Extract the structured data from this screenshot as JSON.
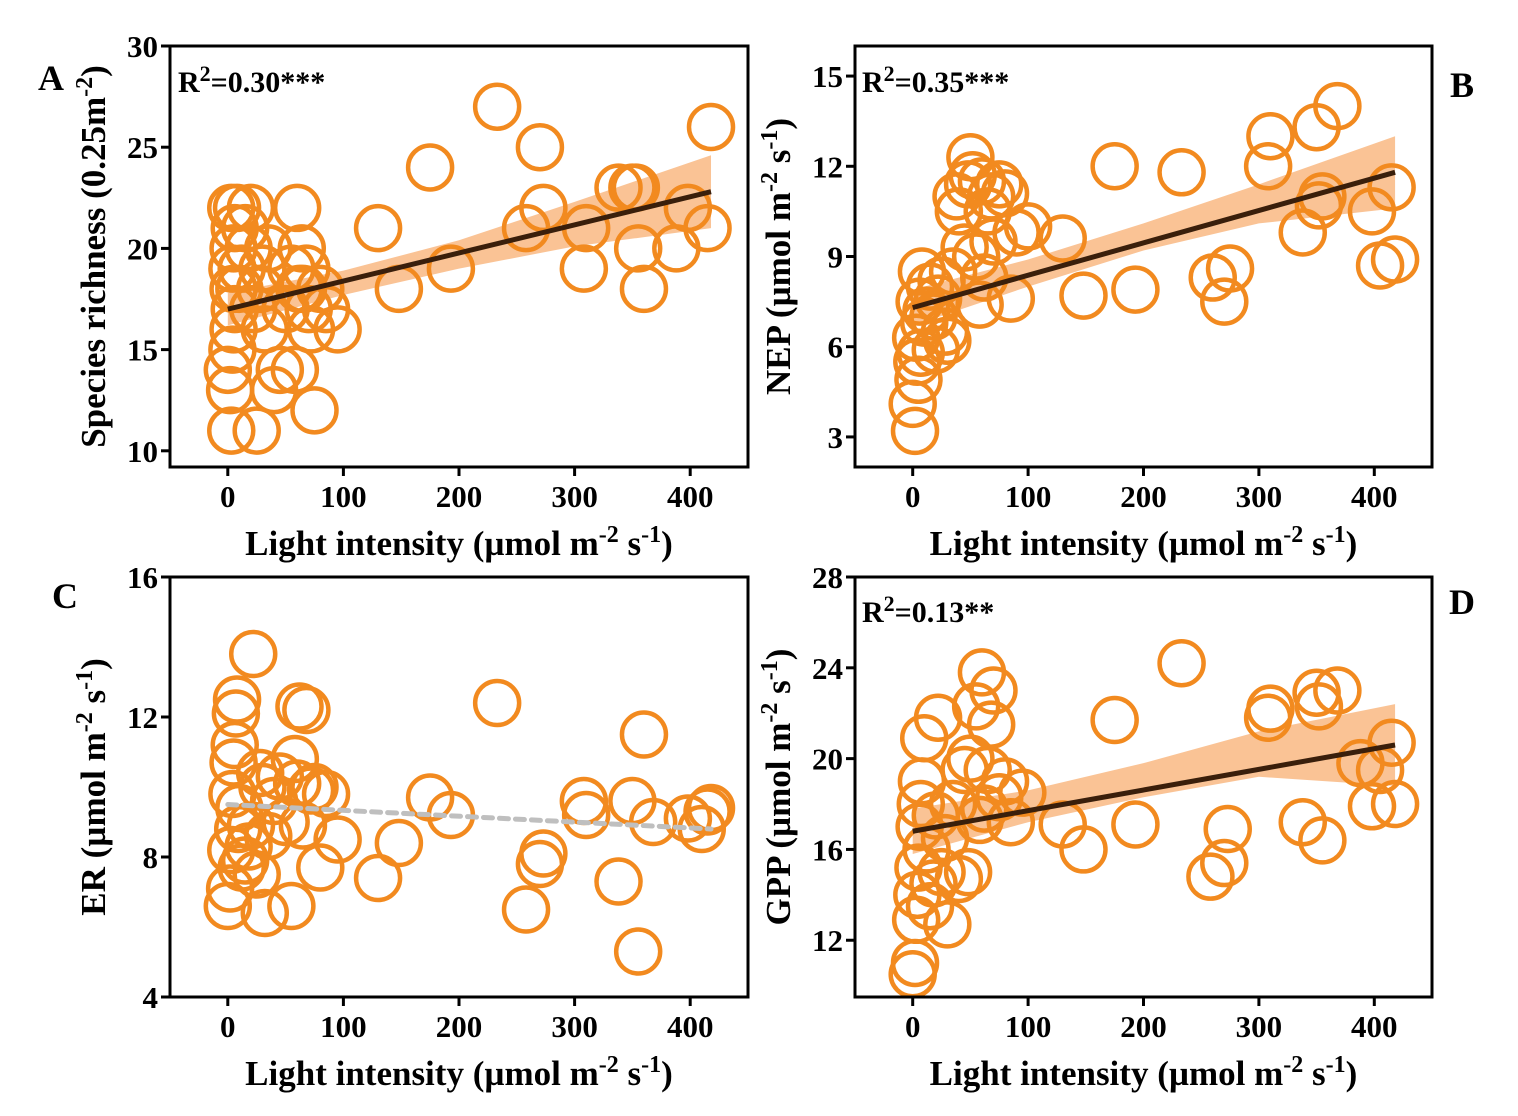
{
  "colors": {
    "marker": "#F28A1F",
    "fit_line": "#3A1F0B",
    "ci_band": "#F9B47A",
    "nonsig_line": "#BFBFBF",
    "axis": "#000000"
  },
  "chart_data": [
    {
      "type": "scatter",
      "panel_label": "A",
      "stat_label": "R",
      "stat_sup": "2",
      "stat_value": "=0.30***",
      "xlabel": "Light intensity (µmol m",
      "xlabel_sup": "-2",
      "xlabel_mid": " s",
      "xlabel_sup2": "-1",
      "xlabel_end": ")",
      "ylabel": "Species richness (0.25m",
      "ylabel_sup": "-2",
      "ylabel_mid": "",
      "ylabel_sup2": "",
      "ylabel_end": ")",
      "xlim": [
        -50,
        450
      ],
      "ylim": [
        9.2,
        30
      ],
      "xticks": [
        0,
        100,
        200,
        300,
        400
      ],
      "yticks": [
        10,
        15,
        20,
        25,
        30
      ],
      "fit": {
        "x": [
          0,
          418
        ],
        "y": [
          17.0,
          22.8
        ],
        "style": "solid",
        "band": [
          [
            0,
            16.2,
            17.8
          ],
          [
            100,
            17.7,
            18.9
          ],
          [
            200,
            19.0,
            20.4
          ],
          [
            300,
            20.1,
            22.3
          ],
          [
            418,
            21.0,
            24.6
          ]
        ]
      },
      "points": [
        [
          0,
          14
        ],
        [
          3,
          11
        ],
        [
          2,
          13
        ],
        [
          4,
          15
        ],
        [
          5,
          16
        ],
        [
          6,
          17
        ],
        [
          5,
          18
        ],
        [
          4,
          19
        ],
        [
          5,
          20
        ],
        [
          6,
          21
        ],
        [
          3,
          22
        ],
        [
          8,
          22
        ],
        [
          10,
          18
        ],
        [
          12,
          19
        ],
        [
          15,
          21
        ],
        [
          18,
          20
        ],
        [
          20,
          22
        ],
        [
          22,
          17
        ],
        [
          25,
          11
        ],
        [
          28,
          18
        ],
        [
          30,
          19
        ],
        [
          32,
          16
        ],
        [
          35,
          20
        ],
        [
          40,
          13
        ],
        [
          45,
          14
        ],
        [
          50,
          17
        ],
        [
          55,
          19
        ],
        [
          58,
          14
        ],
        [
          60,
          22
        ],
        [
          62,
          18
        ],
        [
          64,
          20
        ],
        [
          65,
          18
        ],
        [
          68,
          19
        ],
        [
          70,
          17
        ],
        [
          72,
          16
        ],
        [
          75,
          12
        ],
        [
          80,
          18
        ],
        [
          85,
          17
        ],
        [
          95,
          16
        ],
        [
          130,
          21
        ],
        [
          148,
          18
        ],
        [
          175,
          24
        ],
        [
          193,
          19
        ],
        [
          233,
          27
        ],
        [
          258,
          21
        ],
        [
          270,
          25
        ],
        [
          273,
          22
        ],
        [
          308,
          19
        ],
        [
          310,
          21
        ],
        [
          338,
          23
        ],
        [
          350,
          23
        ],
        [
          353,
          23
        ],
        [
          355,
          20
        ],
        [
          360,
          18
        ],
        [
          388,
          20
        ],
        [
          398,
          22
        ],
        [
          415,
          21
        ],
        [
          418,
          26
        ]
      ]
    },
    {
      "type": "scatter",
      "panel_label": "B",
      "stat_label": "R",
      "stat_sup": "2",
      "stat_value": "=0.35***",
      "xlabel": "Light intensity (µmol m",
      "xlabel_sup": "-2",
      "xlabel_mid": " s",
      "xlabel_sup2": "-1",
      "xlabel_end": ")",
      "ylabel": "NEP (µmol m",
      "ylabel_sup": "-2",
      "ylabel_mid": " s",
      "ylabel_sup2": "-1",
      "ylabel_end": ")",
      "xlim": [
        -50,
        450
      ],
      "ylim": [
        2.0,
        16.0
      ],
      "xticks": [
        0,
        100,
        200,
        300,
        400
      ],
      "yticks": [
        3,
        6,
        9,
        12,
        15
      ],
      "fit": {
        "x": [
          0,
          418
        ],
        "y": [
          7.3,
          11.8
        ],
        "style": "solid",
        "band": [
          [
            0,
            6.7,
            7.9
          ],
          [
            100,
            8.0,
            8.9
          ],
          [
            200,
            9.2,
            10.1
          ],
          [
            300,
            10.1,
            11.4
          ],
          [
            418,
            10.6,
            13.0
          ]
        ]
      },
      "points": [
        [
          0,
          4.1
        ],
        [
          2,
          3.2
        ],
        [
          3,
          6.3
        ],
        [
          4,
          5.5
        ],
        [
          5,
          4.9
        ],
        [
          6,
          7.5
        ],
        [
          7,
          5.8
        ],
        [
          8,
          8.5
        ],
        [
          10,
          6.8
        ],
        [
          12,
          7.2
        ],
        [
          15,
          8.0
        ],
        [
          18,
          7.0
        ],
        [
          20,
          5.9
        ],
        [
          22,
          7.6
        ],
        [
          25,
          8.2
        ],
        [
          28,
          6.5
        ],
        [
          30,
          6.2
        ],
        [
          35,
          8.5
        ],
        [
          38,
          11.0
        ],
        [
          40,
          10.5
        ],
        [
          45,
          9.3
        ],
        [
          48,
          11.4
        ],
        [
          50,
          12.3
        ],
        [
          52,
          11.7
        ],
        [
          55,
          9.0
        ],
        [
          58,
          7.4
        ],
        [
          60,
          11.5
        ],
        [
          62,
          8.3
        ],
        [
          65,
          10.5
        ],
        [
          68,
          11.0
        ],
        [
          70,
          9.5
        ],
        [
          75,
          11.4
        ],
        [
          80,
          11.1
        ],
        [
          85,
          7.6
        ],
        [
          90,
          9.8
        ],
        [
          100,
          10.0
        ],
        [
          130,
          9.6
        ],
        [
          148,
          7.7
        ],
        [
          175,
          12.0
        ],
        [
          193,
          7.9
        ],
        [
          233,
          11.8
        ],
        [
          260,
          8.3
        ],
        [
          270,
          7.5
        ],
        [
          275,
          8.6
        ],
        [
          308,
          12.0
        ],
        [
          310,
          13.0
        ],
        [
          338,
          9.8
        ],
        [
          350,
          13.3
        ],
        [
          352,
          10.7
        ],
        [
          355,
          11.0
        ],
        [
          368,
          14.0
        ],
        [
          398,
          10.5
        ],
        [
          405,
          8.7
        ],
        [
          415,
          11.3
        ],
        [
          418,
          8.9
        ]
      ]
    },
    {
      "type": "scatter",
      "panel_label": "C",
      "stat_label": "",
      "stat_sup": "",
      "stat_value": "",
      "xlabel": "Light intensity (µmol m",
      "xlabel_sup": "-2",
      "xlabel_mid": " s",
      "xlabel_sup2": "-1",
      "xlabel_end": ")",
      "ylabel": "ER (µmol m",
      "ylabel_sup": "-2",
      "ylabel_mid": " s",
      "ylabel_sup2": "-1",
      "ylabel_end": ")",
      "xlim": [
        -50,
        450
      ],
      "ylim": [
        4,
        16
      ],
      "xticks": [
        0,
        100,
        200,
        300,
        400
      ],
      "yticks": [
        4,
        8,
        12,
        16
      ],
      "fit": {
        "x": [
          0,
          418
        ],
        "y": [
          9.5,
          8.8
        ],
        "style": "dashed",
        "band": []
      },
      "points": [
        [
          0,
          6.6
        ],
        [
          2,
          7.1
        ],
        [
          3,
          8.2
        ],
        [
          4,
          9.8
        ],
        [
          5,
          10.7
        ],
        [
          6,
          11.2
        ],
        [
          7,
          12.1
        ],
        [
          8,
          12.5
        ],
        [
          9,
          8.8
        ],
        [
          10,
          9.4
        ],
        [
          12,
          7.7
        ],
        [
          15,
          7.9
        ],
        [
          18,
          8.3
        ],
        [
          20,
          8.9
        ],
        [
          22,
          13.8
        ],
        [
          25,
          7.5
        ],
        [
          28,
          10.4
        ],
        [
          30,
          10.0
        ],
        [
          32,
          6.4
        ],
        [
          35,
          8.6
        ],
        [
          40,
          9.6
        ],
        [
          45,
          10.3
        ],
        [
          50,
          9.0
        ],
        [
          55,
          6.6
        ],
        [
          58,
          10.8
        ],
        [
          60,
          10.1
        ],
        [
          62,
          12.3
        ],
        [
          65,
          8.9
        ],
        [
          68,
          12.2
        ],
        [
          72,
          9.9
        ],
        [
          75,
          10.0
        ],
        [
          80,
          7.7
        ],
        [
          85,
          9.8
        ],
        [
          95,
          8.5
        ],
        [
          130,
          7.4
        ],
        [
          148,
          8.4
        ],
        [
          175,
          9.7
        ],
        [
          193,
          9.2
        ],
        [
          233,
          12.4
        ],
        [
          258,
          6.5
        ],
        [
          270,
          7.8
        ],
        [
          273,
          8.1
        ],
        [
          308,
          9.6
        ],
        [
          310,
          9.2
        ],
        [
          338,
          7.3
        ],
        [
          350,
          9.6
        ],
        [
          355,
          5.3
        ],
        [
          360,
          11.5
        ],
        [
          368,
          9.0
        ],
        [
          398,
          9.1
        ],
        [
          410,
          8.8
        ],
        [
          415,
          9.3
        ],
        [
          418,
          9.4
        ]
      ]
    },
    {
      "type": "scatter",
      "panel_label": "D",
      "stat_label": "R",
      "stat_sup": "2",
      "stat_value": "=0.13**",
      "xlabel": "Light intensity (µmol m",
      "xlabel_sup": "-2",
      "xlabel_mid": " s",
      "xlabel_sup2": "-1",
      "xlabel_end": ")",
      "ylabel": "GPP (µmol m",
      "ylabel_sup": "-2",
      "ylabel_mid": " s",
      "ylabel_sup2": "-1",
      "ylabel_end": ")",
      "xlim": [
        -50,
        450
      ],
      "ylim": [
        9.5,
        28
      ],
      "xticks": [
        0,
        100,
        200,
        300,
        400
      ],
      "yticks": [
        12,
        16,
        20,
        24,
        28
      ],
      "fit": {
        "x": [
          0,
          418
        ],
        "y": [
          16.8,
          20.6
        ],
        "style": "solid",
        "band": [
          [
            0,
            15.8,
            17.8
          ],
          [
            100,
            17.2,
            18.6
          ],
          [
            200,
            18.3,
            19.8
          ],
          [
            300,
            19.2,
            21.2
          ],
          [
            418,
            18.8,
            22.4
          ]
        ]
      },
      "points": [
        [
          0,
          10.5
        ],
        [
          2,
          11.0
        ],
        [
          3,
          12.9
        ],
        [
          4,
          14.0
        ],
        [
          5,
          15.2
        ],
        [
          6,
          17.0
        ],
        [
          7,
          18.0
        ],
        [
          8,
          19.0
        ],
        [
          10,
          20.9
        ],
        [
          12,
          16.0
        ],
        [
          15,
          13.5
        ],
        [
          18,
          14.5
        ],
        [
          20,
          17.5
        ],
        [
          22,
          21.8
        ],
        [
          25,
          15.0
        ],
        [
          28,
          16.5
        ],
        [
          30,
          12.7
        ],
        [
          35,
          18.0
        ],
        [
          40,
          14.7
        ],
        [
          45,
          19.5
        ],
        [
          48,
          15.0
        ],
        [
          50,
          20.0
        ],
        [
          55,
          22.3
        ],
        [
          58,
          17.3
        ],
        [
          60,
          23.8
        ],
        [
          62,
          17.8
        ],
        [
          65,
          19.5
        ],
        [
          68,
          21.5
        ],
        [
          70,
          23.0
        ],
        [
          75,
          18.3
        ],
        [
          80,
          19.0
        ],
        [
          85,
          17.2
        ],
        [
          95,
          18.5
        ],
        [
          130,
          17.1
        ],
        [
          148,
          16.0
        ],
        [
          175,
          21.7
        ],
        [
          193,
          17.1
        ],
        [
          233,
          24.2
        ],
        [
          258,
          14.8
        ],
        [
          270,
          15.4
        ],
        [
          273,
          16.9
        ],
        [
          308,
          21.8
        ],
        [
          310,
          22.2
        ],
        [
          338,
          17.2
        ],
        [
          350,
          22.9
        ],
        [
          352,
          22.3
        ],
        [
          355,
          16.4
        ],
        [
          368,
          23.0
        ],
        [
          388,
          19.8
        ],
        [
          398,
          17.9
        ],
        [
          405,
          19.5
        ],
        [
          415,
          20.7
        ],
        [
          418,
          18.0
        ]
      ]
    }
  ]
}
